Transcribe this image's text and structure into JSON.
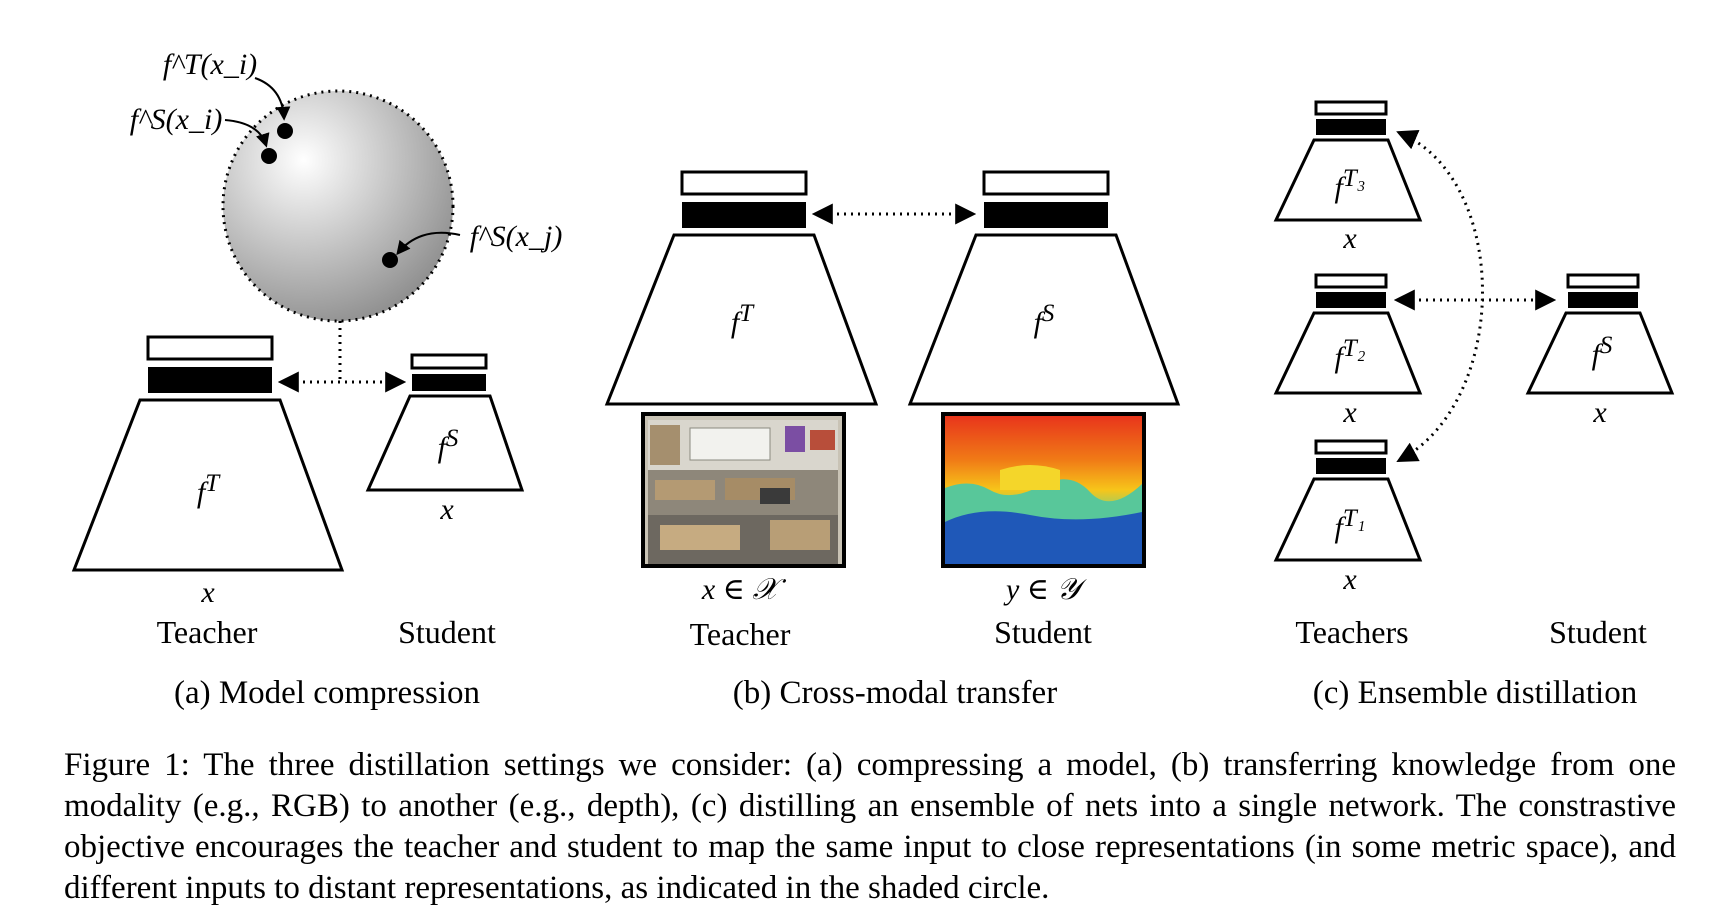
{
  "panel_a": {
    "caption": "(a) Model compression",
    "teacher_label": "Teacher",
    "student_label": "Student",
    "teacher_input": "x",
    "student_input": "x",
    "teacher_fn": "T",
    "student_fn": "S",
    "point_teacher_i": "f^T(x_i)",
    "point_student_i": "f^S(x_i)",
    "point_student_j": "f^S(x_j)"
  },
  "panel_b": {
    "caption": "(b) Cross-modal transfer",
    "teacher_label": "Teacher",
    "student_label": "Student",
    "teacher_input": "x ∈ 𝒳",
    "student_input": "y ∈ 𝒴",
    "teacher_fn": "T",
    "student_fn": "S",
    "rgb_image": "classroom RGB photo",
    "depth_image": "depth map"
  },
  "panel_c": {
    "caption": "(c) Ensemble distillation",
    "teachers_label": "Teachers",
    "student_label": "Student",
    "input": "x",
    "teacher_fns": [
      "T₃",
      "T₂",
      "T₁"
    ],
    "student_fn": "S"
  },
  "figure_caption": "Figure 1: The three distillation settings we consider: (a) compressing a model, (b) transferring knowledge from one modality (e.g., RGB) to another (e.g., depth), (c) distilling an ensemble of nets into a single network. The constrastive objective encourages the teacher and student to map the same input to close representations (in some metric space), and different inputs to distant representations, as indicated in the shaded circle."
}
